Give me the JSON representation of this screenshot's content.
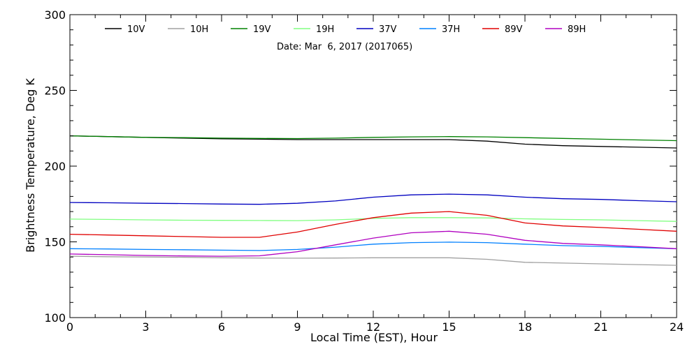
{
  "chart_data": {
    "type": "line",
    "title": "",
    "subtitle": "Date: Mar  6, 2017 (2017065)",
    "xlabel": "Local Time (EST), Hour",
    "ylabel": "Brightness Temperature, Deg K",
    "xlim": [
      0,
      24
    ],
    "ylim": [
      100,
      300
    ],
    "x_ticks": [
      0,
      3,
      6,
      9,
      12,
      15,
      18,
      21,
      24
    ],
    "y_ticks": [
      100,
      150,
      200,
      250,
      300
    ],
    "x_tick_labels": [
      "0",
      "3",
      "6",
      "9",
      "12",
      "15",
      "18",
      "21",
      "24"
    ],
    "y_tick_labels": [
      "100",
      "150",
      "200",
      "250",
      "300"
    ],
    "grid": false,
    "legend_position": "top",
    "x": [
      0,
      1.5,
      3,
      4.5,
      6,
      7.5,
      9,
      10.5,
      12,
      13.5,
      15,
      16.5,
      18,
      19.5,
      21,
      22.5,
      24
    ],
    "series": [
      {
        "name": "10V",
        "color": "#000000",
        "values": [
          220,
          219.5,
          219,
          218.5,
          218,
          217.8,
          217.5,
          217.5,
          217.5,
          217.5,
          217.5,
          216.5,
          214.5,
          213.5,
          213,
          212.5,
          212
        ]
      },
      {
        "name": "10H",
        "color": "#a0a0a0",
        "values": [
          140.5,
          140.2,
          140,
          139.8,
          139.5,
          139.3,
          139.2,
          139.3,
          139.5,
          139.5,
          139.5,
          138.5,
          136.5,
          136,
          135.5,
          135,
          134.5
        ]
      },
      {
        "name": "19V",
        "color": "#008000",
        "values": [
          220,
          219.5,
          219,
          218.8,
          218.5,
          218.3,
          218.2,
          218.5,
          219,
          219.3,
          219.5,
          219.3,
          218.8,
          218.3,
          217.8,
          217.3,
          216.8
        ]
      },
      {
        "name": "19H",
        "color": "#80ff80",
        "values": [
          165,
          164.8,
          164.5,
          164.3,
          164.2,
          164.1,
          164,
          164.5,
          165.5,
          166,
          166,
          165.8,
          165.2,
          164.8,
          164.5,
          164,
          163.5
        ]
      },
      {
        "name": "37V",
        "color": "#0000c0",
        "values": [
          176,
          175.8,
          175.5,
          175.3,
          175,
          174.8,
          175.5,
          177,
          179.5,
          181,
          181.5,
          181,
          179.5,
          178.5,
          178,
          177.2,
          176.5
        ]
      },
      {
        "name": "37H",
        "color": "#0080ff",
        "values": [
          145.5,
          145.3,
          145,
          144.8,
          144.5,
          144.3,
          145,
          146.5,
          148.5,
          149.5,
          149.8,
          149.5,
          148.5,
          147.5,
          147,
          146.2,
          145.5
        ]
      },
      {
        "name": "89V",
        "color": "#e00000",
        "values": [
          155,
          154.5,
          154,
          153.5,
          153,
          153,
          156.5,
          161.5,
          166,
          169,
          170,
          167.5,
          162.5,
          160.5,
          159.5,
          158.3,
          157
        ]
      },
      {
        "name": "89H",
        "color": "#b000c0",
        "values": [
          142,
          141.5,
          141,
          140.7,
          140.5,
          140.8,
          143.5,
          148,
          152.5,
          156,
          157,
          155,
          151,
          149,
          148,
          146.8,
          145.5
        ]
      }
    ]
  }
}
